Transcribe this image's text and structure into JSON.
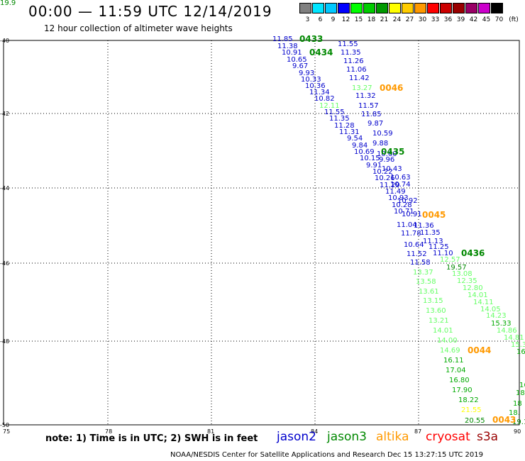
{
  "header": {
    "title": "00:00 — 11:59 UTC 12/14/2019",
    "subtitle": "12 hour collection of altimeter wave heights"
  },
  "scale": {
    "unit": "(ft)",
    "bins": [
      {
        "label": "3",
        "color": "#808080"
      },
      {
        "label": "6",
        "color": "#00e5ff"
      },
      {
        "label": "9",
        "color": "#00c8ff"
      },
      {
        "label": "12",
        "color": "#0000ff"
      },
      {
        "label": "15",
        "color": "#00ff00"
      },
      {
        "label": "18",
        "color": "#00cc00"
      },
      {
        "label": "21",
        "color": "#009900"
      },
      {
        "label": "24",
        "color": "#ffff00"
      },
      {
        "label": "27",
        "color": "#ffcc00"
      },
      {
        "label": "30",
        "color": "#ff9900"
      },
      {
        "label": "33",
        "color": "#ff0000"
      },
      {
        "label": "36",
        "color": "#cc0000"
      },
      {
        "label": "39",
        "color": "#990000"
      },
      {
        "label": "42",
        "color": "#990066"
      },
      {
        "label": "45",
        "color": "#cc00cc"
      },
      {
        "label": "70",
        "color": "#000000"
      }
    ]
  },
  "axes": {
    "lat_labels": [
      "-40",
      "-42",
      "-44",
      "-46",
      "-48",
      "-50"
    ],
    "lon_labels": [
      "75",
      "78",
      "81",
      "84",
      "87",
      "90"
    ]
  },
  "passes": [
    {
      "id": "0433",
      "color": "#008800"
    },
    {
      "id": "0434",
      "color": "#008800"
    },
    {
      "id": "0046",
      "color": "#ff9900"
    },
    {
      "id": "0435",
      "color": "#008800"
    },
    {
      "id": "0045",
      "color": "#ff9900"
    },
    {
      "id": "0436",
      "color": "#008800"
    },
    {
      "id": "0044",
      "color": "#ff9900"
    },
    {
      "id": "0043",
      "color": "#ff9900"
    }
  ],
  "wave_heights": [
    {
      "v": "11.85",
      "c": "#0000cc"
    },
    {
      "v": "11.38",
      "c": "#0000cc"
    },
    {
      "v": "10.91",
      "c": "#0000cc"
    },
    {
      "v": "10.65",
      "c": "#0000cc"
    },
    {
      "v": "9.67",
      "c": "#0000cc"
    },
    {
      "v": "9.93",
      "c": "#0000cc"
    },
    {
      "v": "10.33",
      "c": "#0000cc"
    },
    {
      "v": "10.36",
      "c": "#0000cc"
    },
    {
      "v": "11.34",
      "c": "#0000cc"
    },
    {
      "v": "10.82",
      "c": "#0000cc"
    },
    {
      "v": "12.11",
      "c": "#66ff66"
    },
    {
      "v": "11.55",
      "c": "#0000cc"
    },
    {
      "v": "11.35",
      "c": "#0000cc"
    },
    {
      "v": "11.28",
      "c": "#0000cc"
    },
    {
      "v": "11.31",
      "c": "#0000cc"
    },
    {
      "v": "9.54",
      "c": "#0000cc"
    },
    {
      "v": "9.84",
      "c": "#0000cc"
    },
    {
      "v": "10.69",
      "c": "#0000cc"
    },
    {
      "v": "10.15",
      "c": "#0000cc"
    },
    {
      "v": "9.91",
      "c": "#0000cc"
    },
    {
      "v": "10.22",
      "c": "#0000cc"
    },
    {
      "v": "10.26",
      "c": "#0000cc"
    },
    {
      "v": "11.29",
      "c": "#0000cc"
    },
    {
      "v": "11.49",
      "c": "#0000cc"
    },
    {
      "v": "10.93",
      "c": "#0000cc"
    },
    {
      "v": "10.28",
      "c": "#0000cc"
    },
    {
      "v": "10.71",
      "c": "#0000cc"
    },
    {
      "v": "11.04",
      "c": "#0000cc"
    },
    {
      "v": "11.78",
      "c": "#0000cc"
    },
    {
      "v": "10.64",
      "c": "#0000cc"
    },
    {
      "v": "11.52",
      "c": "#0000cc"
    },
    {
      "v": "11.55",
      "c": "#0000cc"
    },
    {
      "v": "11.35",
      "c": "#0000cc"
    },
    {
      "v": "11.26",
      "c": "#0000cc"
    },
    {
      "v": "11.06",
      "c": "#0000cc"
    },
    {
      "v": "11.42",
      "c": "#0000cc"
    },
    {
      "v": "13.27",
      "c": "#66ff66"
    },
    {
      "v": "11.32",
      "c": "#0000cc"
    },
    {
      "v": "11.57",
      "c": "#0000cc"
    },
    {
      "v": "11.85",
      "c": "#0000cc"
    },
    {
      "v": "9.87",
      "c": "#0000cc"
    },
    {
      "v": "10.59",
      "c": "#0000cc"
    },
    {
      "v": "9.88",
      "c": "#0000cc"
    },
    {
      "v": "10.60",
      "c": "#0000cc"
    },
    {
      "v": "9.96",
      "c": "#0000cc"
    },
    {
      "v": "10.43",
      "c": "#0000cc"
    },
    {
      "v": "10.63",
      "c": "#0000cc"
    },
    {
      "v": "10.74",
      "c": "#0000cc"
    },
    {
      "v": "10.92",
      "c": "#0000cc"
    },
    {
      "v": "10.91",
      "c": "#0000cc"
    },
    {
      "v": "11.36",
      "c": "#0000cc"
    },
    {
      "v": "11.35",
      "c": "#0000cc"
    },
    {
      "v": "11.13",
      "c": "#0000cc"
    },
    {
      "v": "11.25",
      "c": "#0000cc"
    },
    {
      "v": "11.10",
      "c": "#0000cc"
    },
    {
      "v": "12.57",
      "c": "#66ff66"
    },
    {
      "v": "11.58",
      "c": "#0000cc"
    },
    {
      "v": "13.37",
      "c": "#66ff66"
    },
    {
      "v": "13.58",
      "c": "#66ff66"
    },
    {
      "v": "13.61",
      "c": "#66ff66"
    },
    {
      "v": "13.15",
      "c": "#66ff66"
    },
    {
      "v": "13.60",
      "c": "#66ff66"
    },
    {
      "v": "13.21",
      "c": "#66ff66"
    },
    {
      "v": "14.01",
      "c": "#66ff66"
    },
    {
      "v": "14.00",
      "c": "#66ff66"
    },
    {
      "v": "14.69",
      "c": "#66ff66"
    },
    {
      "v": "16.11",
      "c": "#00aa00"
    },
    {
      "v": "17.04",
      "c": "#00aa00"
    },
    {
      "v": "16.80",
      "c": "#00aa00"
    },
    {
      "v": "17.90",
      "c": "#00aa00"
    },
    {
      "v": "18.22",
      "c": "#00aa00"
    },
    {
      "v": "21.55",
      "c": "#ffff00"
    },
    {
      "v": "20.55",
      "c": "#008800"
    },
    {
      "v": "19.57",
      "c": "#008800"
    },
    {
      "v": "13.08",
      "c": "#66ff66"
    },
    {
      "v": "12.35",
      "c": "#66ff66"
    },
    {
      "v": "12.80",
      "c": "#66ff66"
    },
    {
      "v": "14.01",
      "c": "#66ff66"
    },
    {
      "v": "14.11",
      "c": "#66ff66"
    },
    {
      "v": "14.05",
      "c": "#66ff66"
    },
    {
      "v": "14.23",
      "c": "#66ff66"
    },
    {
      "v": "15.33",
      "c": "#00aa00"
    },
    {
      "v": "14.86",
      "c": "#66ff66"
    },
    {
      "v": "14.81",
      "c": "#66ff66"
    },
    {
      "v": "15.3",
      "c": "#66ff66"
    },
    {
      "v": "16.8",
      "c": "#00aa00"
    },
    {
      "v": "16",
      "c": "#00aa00"
    },
    {
      "v": "18",
      "c": "#00aa00"
    },
    {
      "v": "18",
      "c": "#00aa00"
    },
    {
      "v": "18.",
      "c": "#00aa00"
    },
    {
      "v": "19.1",
      "c": "#008800"
    },
    {
      "v": "19.9",
      "c": "#008800"
    }
  ],
  "notes": {
    "note": "note: 1) Time is in UTC; 2) SWH is in feet",
    "sats": [
      {
        "name": "jason2",
        "color": "#0000cc"
      },
      {
        "name": "jason3",
        "color": "#008800"
      },
      {
        "name": "altika",
        "color": "#ff9900"
      },
      {
        "name": "cryosat",
        "color": "#ff0000"
      },
      {
        "name": "s3a",
        "color": "#990000"
      }
    ]
  },
  "footer": "NOAA/NESDIS Center for Satellite Applications and Research    Dec 15 13:27:15 UTC 2019"
}
